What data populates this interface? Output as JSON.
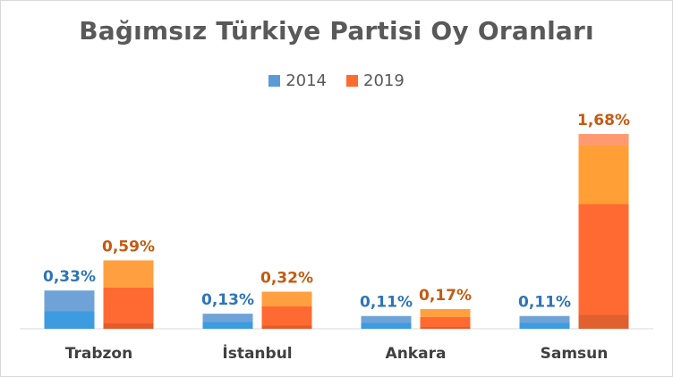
{
  "chart_data": {
    "type": "bar",
    "title": "Bağımsız Türkiye Partisi Oy Oranları",
    "categories": [
      "Trabzon",
      "İstanbul",
      "Ankara",
      "Samsun"
    ],
    "series": [
      {
        "name": "2014",
        "values": [
          0.33,
          0.13,
          0.11,
          0.11
        ],
        "labels": [
          "0,33%",
          "0,13%",
          "0,11%",
          "0,11%"
        ],
        "color": "#5b9bd5",
        "label_color": "#2e75b6"
      },
      {
        "name": "2019",
        "values": [
          0.59,
          0.32,
          0.17,
          1.68
        ],
        "labels": [
          "0,59%",
          "0,32%",
          "0,17%",
          "1,68%"
        ],
        "color": "#ff6a2e",
        "label_color": "#c55a11"
      }
    ],
    "ylim": [
      0,
      1.68
    ],
    "grid": false,
    "legend_position": "top"
  }
}
